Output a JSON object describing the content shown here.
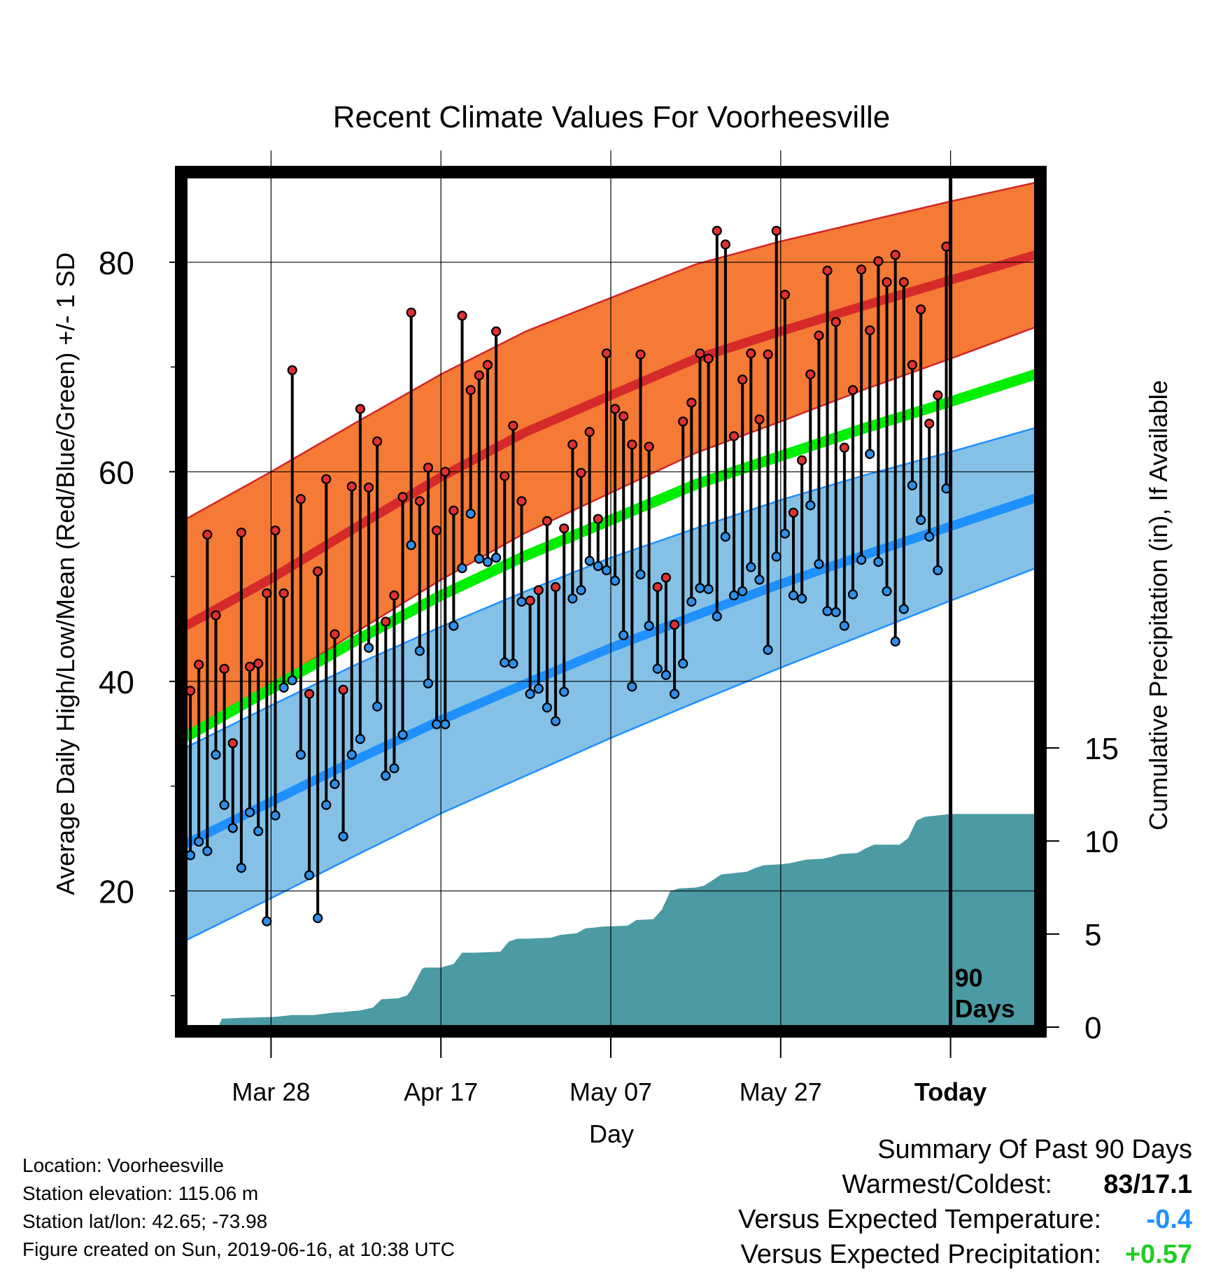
{
  "title": "Recent Climate Values For Voorheesville",
  "y_left_label": "Average Daily High/Low/Mean (Red/Blue/Green) +/- 1 SD",
  "y_right_label": "Cumulative Precipitation (in), If Available",
  "x_label": "Day",
  "today_marker": "90\nDays",
  "info": {
    "location": "Location: Voorheesville",
    "elevation": "Station elevation: 115.06 m",
    "latlon": "Station lat/lon: 42.65; -73.98",
    "created": "Figure created on Sun, 2019-06-16, at 10:38 UTC"
  },
  "summary": {
    "title": "Summary Of Past 90 Days",
    "warm_cold_label": "Warmest/Coldest:",
    "warm_cold_value": "83/17.1",
    "temp_label": "Versus Expected Temperature:",
    "temp_value": "-0.4",
    "precip_label": "Versus Expected Precipitation:",
    "precip_value": "+0.57"
  },
  "colors": {
    "high_band": "#F47A35",
    "high_mean": "#D62A2A",
    "high_edge": "#D12525",
    "low_band": "#85C1E6",
    "low_mean": "#1E90FF",
    "low_edge": "#1E90FF",
    "daily_mean": "#00EE00",
    "precip_fill": "#4A9BA3",
    "temp_value": "#1E90FF",
    "precip_value": "#22CC22"
  },
  "chart_data": {
    "type": "line",
    "start_date": "2019-03-18",
    "x_ticks": [
      {
        "label": "Mar 28",
        "day": 10
      },
      {
        "label": "Apr 17",
        "day": 30
      },
      {
        "label": "May 07",
        "day": 50
      },
      {
        "label": "May 27",
        "day": 70
      },
      {
        "label": "Today",
        "day": 90
      }
    ],
    "x_range": [
      0,
      100
    ],
    "y_left_range": [
      7,
      88
    ],
    "y_left_ticks": [
      20,
      40,
      60,
      80
    ],
    "y_left_minor_ticks": [
      10,
      30,
      50,
      70
    ],
    "y_right_range": [
      0,
      45.6
    ],
    "y_right_ticks": [
      0,
      5,
      10,
      15
    ],
    "normals": {
      "days": [
        0,
        10,
        20,
        30,
        40,
        50,
        60,
        70,
        80,
        90,
        100
      ],
      "high_mean": [
        45.3,
        49.8,
        54.7,
        59.5,
        63.8,
        67.3,
        70.8,
        73.4,
        75.9,
        78.3,
        80.7
      ],
      "high_sd": [
        10.2,
        10.2,
        10.0,
        9.8,
        9.6,
        9.3,
        9.0,
        8.6,
        8.0,
        7.5,
        6.9
      ],
      "low_mean": [
        24.5,
        28.5,
        32.5,
        36.3,
        39.8,
        43.2,
        46.3,
        49.3,
        52.1,
        54.8,
        57.5
      ],
      "low_sd": [
        9.2,
        9.2,
        9.1,
        8.9,
        8.8,
        8.6,
        8.3,
        8.0,
        7.6,
        7.1,
        6.7
      ],
      "daily_mean": [
        34.7,
        39.3,
        43.9,
        48.2,
        52.0,
        55.4,
        58.8,
        61.5,
        64.2,
        66.7,
        69.3
      ]
    },
    "highs": [
      39.1,
      41.6,
      54.0,
      46.3,
      41.2,
      34.1,
      54.2,
      41.4,
      41.7,
      48.4,
      54.4,
      48.4,
      69.7,
      57.4,
      38.8,
      50.5,
      59.3,
      44.5,
      39.2,
      58.6,
      66.0,
      58.5,
      62.9,
      45.7,
      48.2,
      57.6,
      75.2,
      57.2,
      60.4,
      54.4,
      60.0,
      56.3,
      74.9,
      67.8,
      69.2,
      70.2,
      73.4,
      59.6,
      64.4,
      57.2,
      47.7,
      48.7,
      55.3,
      49.0,
      54.6,
      62.6,
      59.9,
      63.8,
      55.5,
      71.3,
      66.0,
      65.3,
      62.6,
      71.2,
      62.4,
      49.0,
      49.9,
      45.4,
      64.8,
      66.6,
      71.3,
      70.8,
      83.0,
      81.7,
      63.4,
      68.8,
      71.3,
      65.0,
      71.2,
      83.0,
      76.9,
      56.1,
      61.1,
      69.3,
      73.0,
      79.2,
      74.3,
      62.3,
      67.8,
      79.3,
      73.5,
      80.1,
      78.1,
      80.7,
      78.1,
      70.2,
      75.5,
      64.6,
      67.3,
      81.5
    ],
    "lows": [
      23.4,
      24.7,
      23.8,
      33.0,
      28.2,
      26.0,
      22.2,
      27.5,
      25.7,
      17.1,
      27.2,
      39.4,
      40.1,
      33.0,
      21.5,
      17.4,
      28.2,
      30.2,
      25.2,
      33.0,
      34.5,
      43.2,
      37.6,
      31.0,
      31.7,
      34.9,
      53.0,
      42.9,
      39.8,
      35.9,
      35.9,
      45.3,
      50.8,
      56.0,
      51.7,
      51.4,
      51.8,
      41.8,
      41.7,
      47.6,
      38.8,
      39.3,
      37.5,
      36.2,
      39.0,
      47.9,
      48.7,
      51.5,
      51.0,
      50.6,
      49.6,
      44.4,
      39.5,
      50.2,
      45.3,
      41.2,
      40.6,
      38.8,
      41.7,
      47.6,
      48.9,
      48.8,
      46.2,
      53.8,
      48.2,
      48.6,
      50.9,
      49.7,
      43.0,
      51.9,
      54.1,
      48.2,
      47.9,
      56.8,
      51.2,
      46.7,
      46.6,
      45.3,
      48.3,
      51.6,
      61.7,
      51.4,
      48.6,
      43.8,
      46.9,
      58.7,
      55.4,
      53.8,
      50.6,
      58.4
    ],
    "precip_cumulative": {
      "days": [
        0,
        3.8,
        4.2,
        6.5,
        10.5,
        12.5,
        15.0,
        17.8,
        18.3,
        20.5,
        22.0,
        23.0,
        25.0,
        26.0,
        26.5,
        27.8,
        28.2,
        30.0,
        31.5,
        32.0,
        32.5,
        34.0,
        37.0,
        38.0,
        39.0,
        40.0,
        43.0,
        44.0,
        46.0,
        47.0,
        48.0,
        49.0,
        52.0,
        53.0,
        55.0,
        56.0,
        57.0,
        58.0,
        60.0,
        61.0,
        62.0,
        63.0,
        64.0,
        66.0,
        67.0,
        68.0,
        70.0,
        71.0,
        72.0,
        73.0,
        75.0,
        76.0,
        77.0,
        79.0,
        80.0,
        81.0,
        84.0,
        85.0,
        86.0,
        87.0,
        88.0,
        90.0,
        100.0
      ],
      "values": [
        0,
        0,
        0.45,
        0.5,
        0.55,
        0.65,
        0.65,
        0.8,
        0.8,
        0.9,
        1.05,
        1.5,
        1.55,
        1.7,
        2.0,
        3.15,
        3.2,
        3.2,
        3.4,
        3.7,
        4.0,
        4.0,
        4.05,
        4.6,
        4.75,
        4.75,
        4.8,
        4.95,
        5.05,
        5.3,
        5.35,
        5.4,
        5.45,
        5.75,
        5.8,
        6.3,
        7.3,
        7.45,
        7.5,
        7.6,
        7.9,
        8.2,
        8.25,
        8.35,
        8.55,
        8.7,
        8.75,
        8.8,
        8.9,
        9.0,
        9.05,
        9.15,
        9.3,
        9.35,
        9.6,
        9.8,
        9.8,
        10.15,
        11.1,
        11.3,
        11.35,
        11.45,
        11.45
      ]
    }
  }
}
